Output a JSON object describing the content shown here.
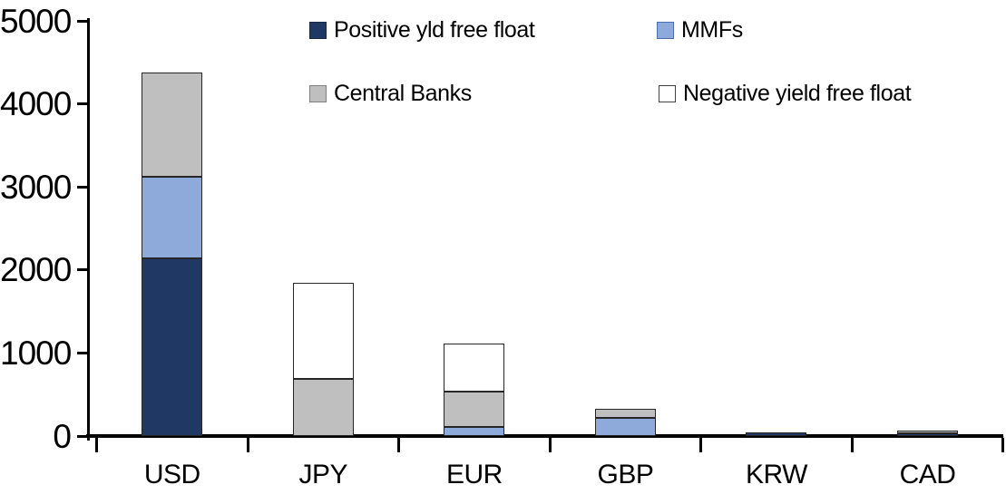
{
  "legend": {
    "items": [
      {
        "label": "Positive yld free float",
        "color": "#1F3864",
        "border": "#17274A"
      },
      {
        "label": "MMFs",
        "color": "#8EAADB",
        "border": "#4A6FB0"
      },
      {
        "label": "Central Banks",
        "color": "#BFBFBF",
        "border": "#7F7F7F"
      },
      {
        "label": "Negative yield free float",
        "color": "#FFFFFF",
        "border": "#404040"
      }
    ]
  },
  "chart_data": {
    "type": "bar",
    "stacked": true,
    "categories": [
      "USD",
      "JPY",
      "EUR",
      "GBP",
      "KRW",
      "CAD"
    ],
    "series": [
      {
        "name": "Positive yld free float",
        "color": "#1F3864",
        "values": [
          2140,
          0,
          0,
          0,
          40,
          35
        ]
      },
      {
        "name": "MMFs",
        "color": "#8EAADB",
        "values": [
          980,
          0,
          110,
          220,
          0,
          0
        ]
      },
      {
        "name": "Central Banks",
        "color": "#BFBFBF",
        "values": [
          1260,
          690,
          430,
          110,
          0,
          30
        ]
      },
      {
        "name": "Negative yield free float",
        "color": "#FFFFFF",
        "values": [
          0,
          1150,
          570,
          0,
          0,
          0
        ]
      }
    ],
    "totals": {
      "USD": 4380,
      "JPY": 1840,
      "EUR": 1110,
      "GBP": 330,
      "KRW": 40,
      "CAD": 65
    },
    "ylim": [
      0,
      5000
    ],
    "yticks": [
      0,
      1000,
      2000,
      3000,
      4000,
      5000
    ],
    "xlabel": "",
    "ylabel": "",
    "title": "",
    "grid": false,
    "legend_position": "top"
  }
}
